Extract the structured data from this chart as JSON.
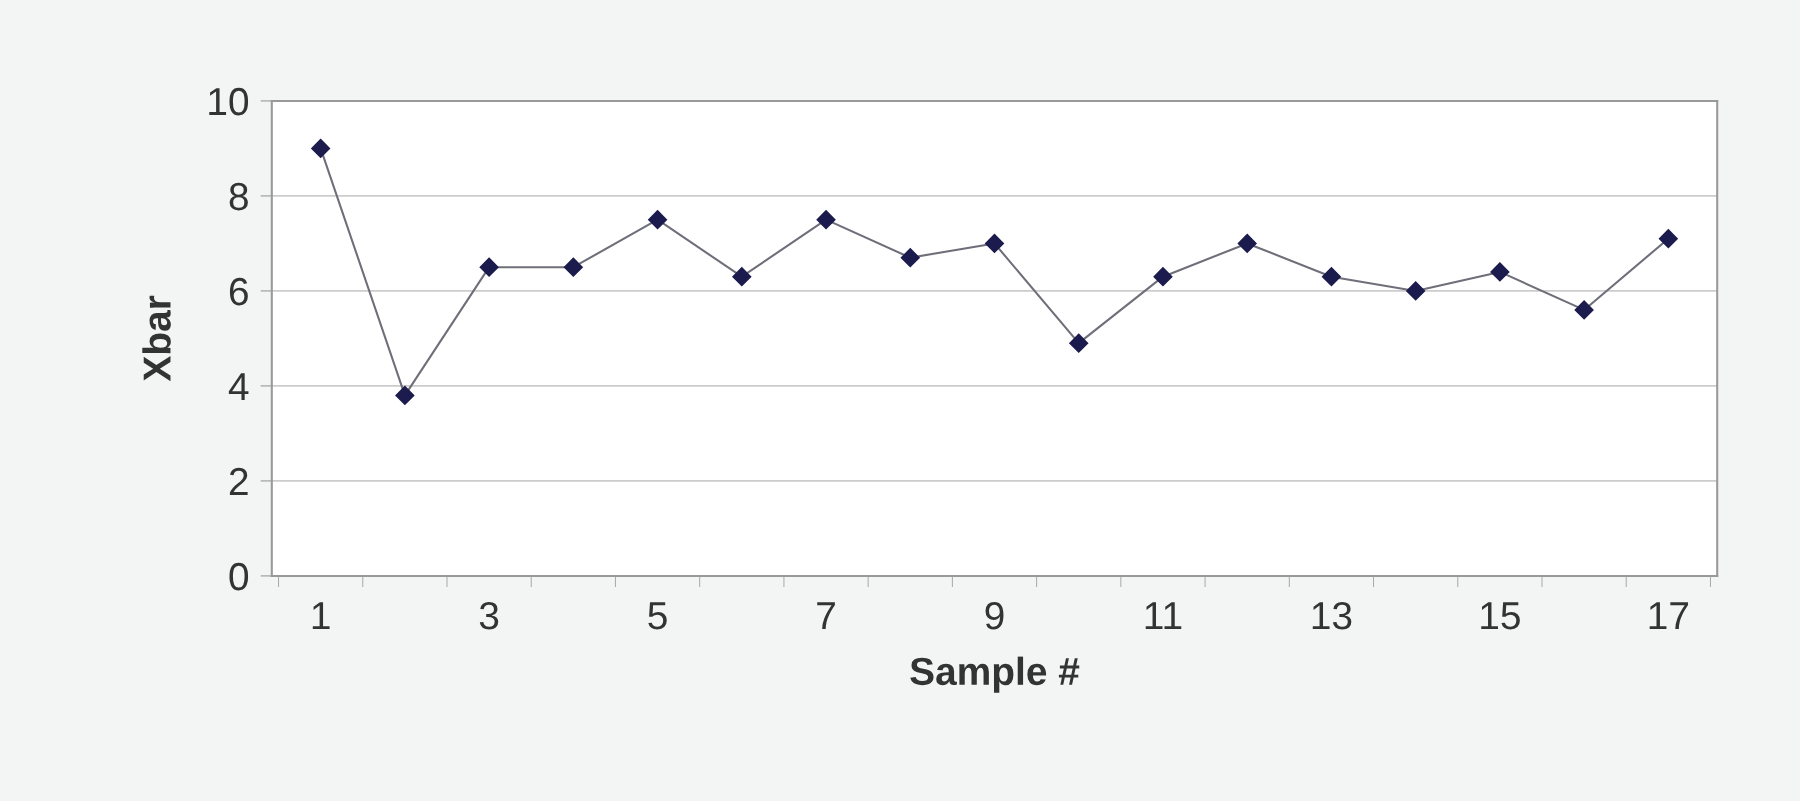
{
  "chart_data": {
    "type": "line",
    "xlabel": "Sample #",
    "ylabel": "Xbar",
    "categories": [
      "1",
      null,
      "3",
      null,
      "5",
      null,
      "7",
      null,
      "9",
      null,
      "11",
      null,
      "13",
      null,
      "15",
      null,
      "17"
    ],
    "series": [
      {
        "color": "#1b1b4d",
        "values": [
          9,
          3.8,
          6.5,
          6.5,
          7.5,
          6.3,
          7.5,
          6.7,
          7,
          4.9,
          6.3,
          7,
          6.3,
          6,
          6.4,
          5.6,
          7.1
        ]
      }
    ],
    "ylim": [
      0,
      10
    ],
    "yticks": [
      0,
      2,
      4,
      6,
      8,
      10
    ],
    "grid": "y",
    "marker": "diamond",
    "line_style": "solid",
    "legend": false
  }
}
